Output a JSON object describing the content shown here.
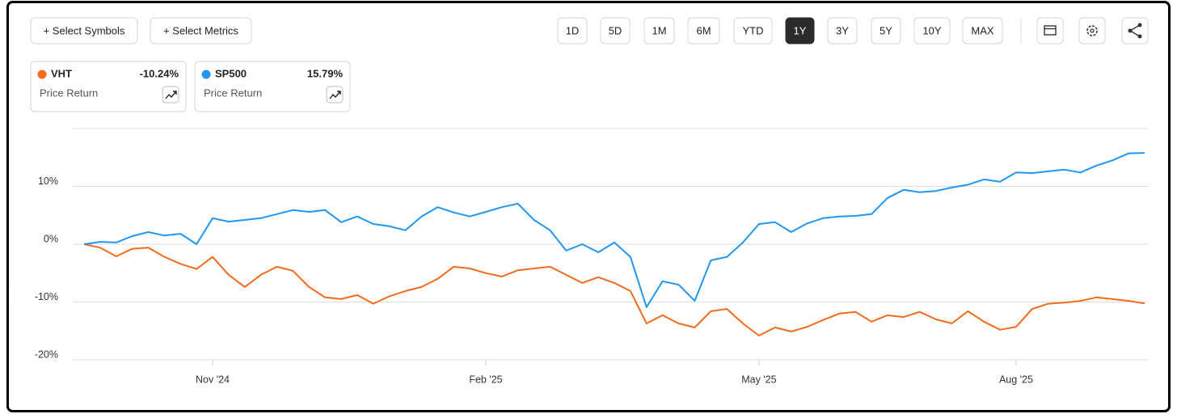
{
  "ui": {
    "buttons": [
      "+ Select Symbols",
      "+ Select Metrics"
    ],
    "ranges": [
      {
        "label": "1D",
        "active": false
      },
      {
        "label": "5D",
        "active": false
      },
      {
        "label": "1M",
        "active": false
      },
      {
        "label": "6M",
        "active": false
      },
      {
        "label": "YTD",
        "active": false
      },
      {
        "label": "1Y",
        "active": true
      },
      {
        "label": "3Y",
        "active": false
      },
      {
        "label": "5Y",
        "active": false
      },
      {
        "label": "10Y",
        "active": false
      },
      {
        "label": "MAX",
        "active": false
      }
    ]
  },
  "chart_data": {
    "type": "line",
    "categories": [
      null,
      null,
      null,
      null,
      null,
      null,
      null,
      null,
      "Nov '24",
      null,
      null,
      null,
      null,
      null,
      null,
      null,
      null,
      null,
      null,
      null,
      null,
      null,
      null,
      null,
      null,
      "Feb '25",
      null,
      null,
      null,
      null,
      null,
      null,
      null,
      null,
      null,
      null,
      null,
      null,
      null,
      null,
      null,
      null,
      "May '25",
      null,
      null,
      null,
      null,
      null,
      null,
      null,
      null,
      null,
      null,
      null,
      null,
      null,
      null,
      null,
      "Aug '25",
      null,
      null,
      null,
      null,
      null,
      null,
      null,
      null
    ],
    "series": [
      {
        "name": "VHT",
        "color": "#f26b1d",
        "return_label": "-10.24%",
        "metric": "Price Return",
        "values": [
          0,
          -0.6,
          -2.1,
          -0.8,
          -0.6,
          -2.2,
          -3.4,
          -4.3,
          -2.2,
          -5.3,
          -7.4,
          -5.3,
          -3.9,
          -4.6,
          -7.4,
          -9.2,
          -9.5,
          -8.8,
          -10.3,
          -9.0,
          -8.1,
          -7.4,
          -6.0,
          -3.9,
          -4.2,
          -5.0,
          -5.6,
          -4.5,
          -4.2,
          -3.9,
          -5.3,
          -6.7,
          -5.7,
          -6.7,
          -8.1,
          -13.7,
          -12.3,
          -13.7,
          -14.4,
          -11.6,
          -11.2,
          -13.7,
          -15.8,
          -14.4,
          -15.1,
          -14.3,
          -13.1,
          -12.0,
          -11.7,
          -13.4,
          -12.3,
          -12.6,
          -11.7,
          -13.0,
          -13.7,
          -11.6,
          -13.4,
          -14.8,
          -14.3,
          -11.2,
          -10.3,
          -10.1,
          -9.8,
          -9.2,
          -9.5,
          -9.8,
          -10.24
        ]
      },
      {
        "name": "SP500",
        "color": "#2196f3",
        "return_label": "15.79%",
        "metric": "Price Return",
        "values": [
          0,
          0.4,
          0.3,
          1.4,
          2.1,
          1.5,
          1.8,
          0,
          4.5,
          3.9,
          4.2,
          4.5,
          5.2,
          5.9,
          5.6,
          5.9,
          3.8,
          4.8,
          3.5,
          3.1,
          2.4,
          4.8,
          6.4,
          5.5,
          4.8,
          5.6,
          6.4,
          7.0,
          4.2,
          2.4,
          -1.1,
          0,
          -1.4,
          0.3,
          -2.2,
          -10.9,
          -6.4,
          -7.0,
          -9.8,
          -2.8,
          -2.2,
          0.3,
          3.5,
          3.8,
          2.1,
          3.6,
          4.5,
          4.8,
          4.9,
          5.2,
          8.0,
          9.4,
          9.0,
          9.2,
          9.8,
          10.3,
          11.2,
          10.8,
          12.4,
          12.3,
          12.6,
          12.9,
          12.4,
          13.6,
          14.5,
          15.7,
          15.79
        ]
      }
    ],
    "ylim": [
      -20,
      20
    ],
    "yticks": [
      {
        "value": -20,
        "label": "-20%"
      },
      {
        "value": -10,
        "label": "-10%"
      },
      {
        "value": 0,
        "label": "0%"
      },
      {
        "value": 10,
        "label": "10%"
      }
    ],
    "grid": true
  }
}
